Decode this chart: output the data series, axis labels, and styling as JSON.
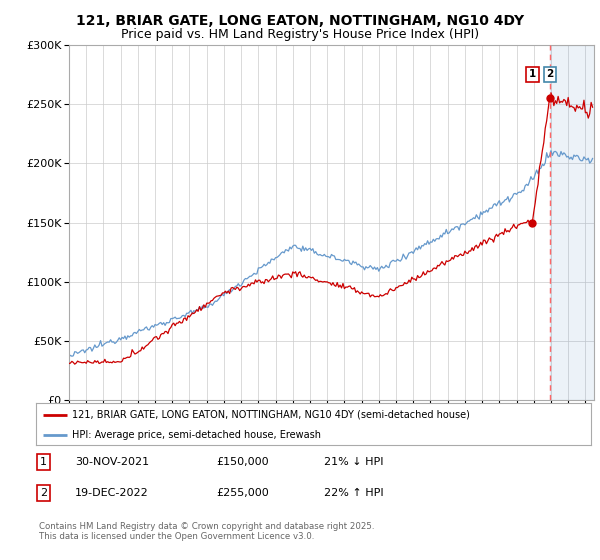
{
  "title": "121, BRIAR GATE, LONG EATON, NOTTINGHAM, NG10 4DY",
  "subtitle": "Price paid vs. HM Land Registry's House Price Index (HPI)",
  "legend_line1": "121, BRIAR GATE, LONG EATON, NOTTINGHAM, NG10 4DY (semi-detached house)",
  "legend_line2": "HPI: Average price, semi-detached house, Erewash",
  "footer": "Contains HM Land Registry data © Crown copyright and database right 2025.\nThis data is licensed under the Open Government Licence v3.0.",
  "annotation1_label": "1",
  "annotation1_date": "30-NOV-2021",
  "annotation1_price": "£150,000",
  "annotation1_hpi": "21% ↓ HPI",
  "annotation2_label": "2",
  "annotation2_date": "19-DEC-2022",
  "annotation2_price": "£255,000",
  "annotation2_hpi": "22% ↑ HPI",
  "red_color": "#cc0000",
  "blue_color": "#6699cc",
  "vline_color": "#ff6666",
  "bg_color": "#ffffff",
  "plot_bg": "#ffffff",
  "ylim": [
    0,
    300000
  ],
  "xlim_start": 1995.0,
  "xlim_end": 2025.5,
  "marker1_x": 2021.917,
  "marker1_y_red": 150000,
  "marker2_x": 2022.958,
  "marker2_y_red": 255000,
  "vline_x": 2022.958,
  "yticks": [
    0,
    50000,
    100000,
    150000,
    200000,
    250000,
    300000
  ],
  "ytick_labels": [
    "£0",
    "£50K",
    "£100K",
    "£150K",
    "£200K",
    "£250K",
    "£300K"
  ],
  "title_fontsize": 10,
  "subtitle_fontsize": 9
}
